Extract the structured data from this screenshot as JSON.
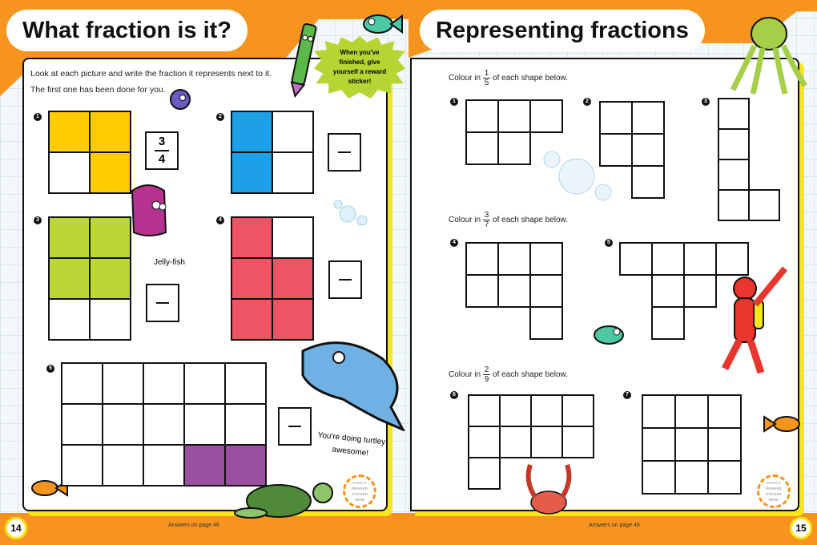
{
  "left_page": {
    "title": "What fraction is it?",
    "instructions": [
      "Look at each picture and write the fraction it represents next to it.",
      "The first one has been done for you."
    ],
    "sticker_prompt": "When you've finished, give yourself a reward sticker!",
    "jellyfish_label": "Jelly-fish",
    "speech": "You're doing turtley awesome!",
    "sticker_spot": "STICK A REWARD STICKER HERE",
    "answers_note": "Answers on page 46",
    "page_number": "14",
    "colors": {
      "orange": "#f7941d",
      "yellow": "#ffcc00",
      "blue": "#1ea0e6",
      "green": "#bcd636",
      "pink": "#ef5465",
      "purple": "#9b4fa0"
    },
    "questions": [
      {
        "number": "1",
        "cols": 2,
        "rows": 2,
        "filled": [
          [
            0,
            0
          ],
          [
            0,
            1
          ],
          [
            1,
            1
          ]
        ],
        "color": "#ffcc00",
        "answer": {
          "numerator": "3",
          "denominator": "4"
        }
      },
      {
        "number": "2",
        "cols": 2,
        "rows": 2,
        "filled": [
          [
            0,
            0
          ],
          [
            1,
            0
          ]
        ],
        "color": "#1ea0e6",
        "answer": null
      },
      {
        "number": "3",
        "cols": 2,
        "rows": 3,
        "filled": [
          [
            0,
            0
          ],
          [
            0,
            1
          ],
          [
            1,
            0
          ],
          [
            1,
            1
          ]
        ],
        "color": "#bcd636",
        "answer": null
      },
      {
        "number": "4",
        "cols": 2,
        "rows": 3,
        "filled": [
          [
            0,
            0
          ],
          [
            1,
            0
          ],
          [
            1,
            1
          ],
          [
            2,
            0
          ],
          [
            2,
            1
          ]
        ],
        "color": "#ef5465",
        "answer": null
      },
      {
        "number": "5",
        "cols": 5,
        "rows": 3,
        "filled": [
          [
            2,
            3
          ],
          [
            2,
            4
          ]
        ],
        "color": "#9b4fa0",
        "answer": null
      }
    ]
  },
  "right_page": {
    "title": "Representing fractions",
    "prompts": [
      {
        "prefix": "Colour in",
        "numerator": "1",
        "denominator": "5",
        "suffix": "of each shape below."
      },
      {
        "prefix": "Colour in",
        "numerator": "3",
        "denominator": "7",
        "suffix": "of each shape below."
      },
      {
        "prefix": "Colour in",
        "numerator": "2",
        "denominator": "9",
        "suffix": "of each shape below."
      }
    ],
    "shapes": [
      {
        "number": "1",
        "cells": [
          [
            0,
            0
          ],
          [
            0,
            1
          ],
          [
            0,
            2
          ],
          [
            1,
            0
          ],
          [
            1,
            1
          ]
        ]
      },
      {
        "number": "2",
        "cells": [
          [
            0,
            0
          ],
          [
            0,
            1
          ],
          [
            1,
            0
          ],
          [
            1,
            1
          ],
          [
            2,
            1
          ]
        ]
      },
      {
        "number": "3",
        "cells": [
          [
            0,
            0
          ],
          [
            1,
            0
          ],
          [
            2,
            0
          ],
          [
            3,
            0
          ],
          [
            3,
            1
          ]
        ]
      },
      {
        "number": "4",
        "cells": [
          [
            0,
            0
          ],
          [
            0,
            1
          ],
          [
            0,
            2
          ],
          [
            1,
            0
          ],
          [
            1,
            1
          ],
          [
            1,
            2
          ],
          [
            2,
            2
          ]
        ]
      },
      {
        "number": "5",
        "cells": [
          [
            0,
            0
          ],
          [
            0,
            1
          ],
          [
            0,
            2
          ],
          [
            0,
            3
          ],
          [
            1,
            1
          ],
          [
            1,
            2
          ],
          [
            2,
            1
          ]
        ]
      },
      {
        "number": "6",
        "cells": [
          [
            0,
            0
          ],
          [
            0,
            1
          ],
          [
            0,
            2
          ],
          [
            0,
            3
          ],
          [
            1,
            0
          ],
          [
            1,
            1
          ],
          [
            1,
            2
          ],
          [
            1,
            3
          ],
          [
            2,
            0
          ]
        ]
      },
      {
        "number": "7",
        "cells": [
          [
            0,
            0
          ],
          [
            0,
            1
          ],
          [
            0,
            2
          ],
          [
            1,
            0
          ],
          [
            1,
            1
          ],
          [
            1,
            2
          ],
          [
            2,
            0
          ],
          [
            2,
            1
          ],
          [
            2,
            2
          ]
        ]
      }
    ],
    "sticker_spot": "STICK A REWARD STICKER HERE",
    "answers_note": "Answers on page 46",
    "page_number": "15"
  }
}
